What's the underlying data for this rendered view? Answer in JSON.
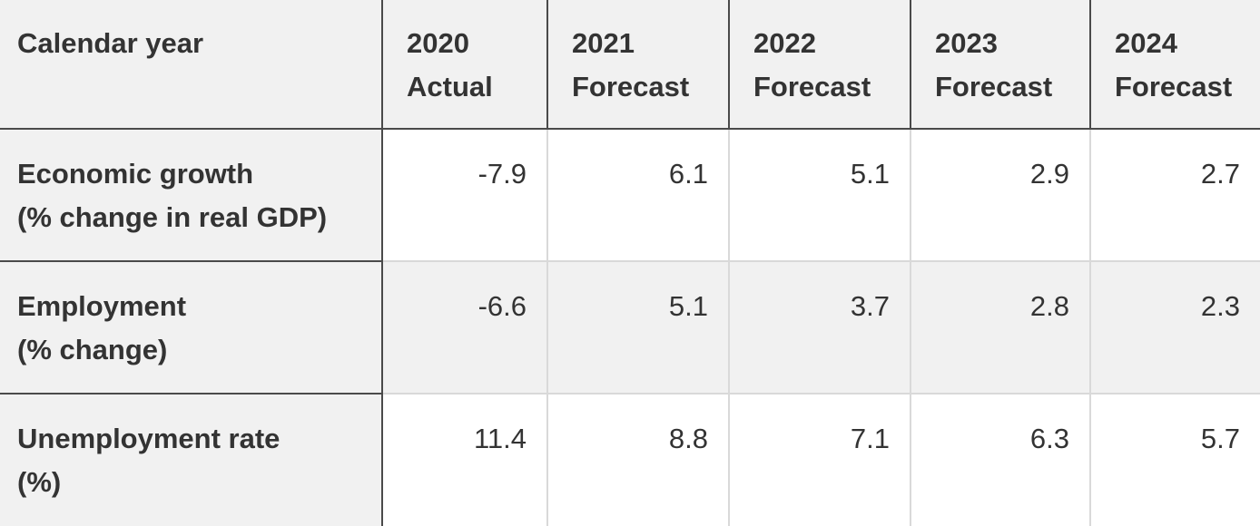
{
  "table": {
    "headers": [
      {
        "line1": "Calendar year",
        "line2": ""
      },
      {
        "line1": "2020",
        "line2": "Actual"
      },
      {
        "line1": "2021",
        "line2": "Forecast"
      },
      {
        "line1": "2022",
        "line2": "Forecast"
      },
      {
        "line1": "2023",
        "line2": "Forecast"
      },
      {
        "line1": "2024",
        "line2": "Forecast"
      }
    ],
    "rows": [
      {
        "label1": "Economic growth",
        "label2": "(% change in real GDP)",
        "values": [
          "-7.9",
          "6.1",
          "5.1",
          "2.9",
          "2.7"
        ]
      },
      {
        "label1": "Employment",
        "label2": "(% change)",
        "values": [
          "-6.6",
          "5.1",
          "3.7",
          "2.8",
          "2.3"
        ]
      },
      {
        "label1": "Unemployment rate",
        "label2": "(%)",
        "values": [
          "11.4",
          "8.8",
          "7.1",
          "6.3",
          "5.7"
        ]
      }
    ]
  }
}
